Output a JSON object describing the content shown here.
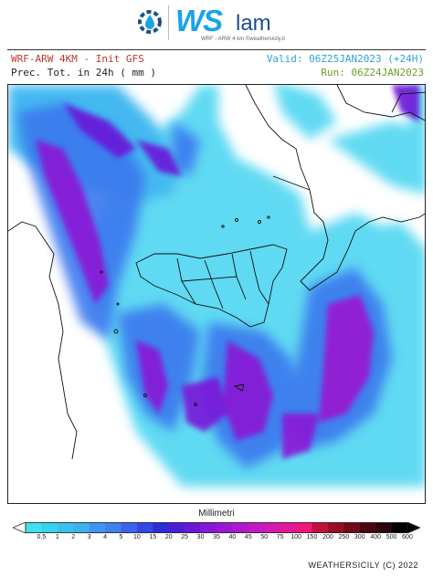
{
  "logo": {
    "brand": "WS",
    "brand_suffix": "lam",
    "tagline": "WRF - ARW 4 km ©weathersicily.it"
  },
  "header": {
    "model": "WRF-ARW 4KM - Init GFS",
    "valid": "Valid: 06Z25JAN2023 (+24H)",
    "field": "Prec. Tot. in 24h ( mm )",
    "run": "Run: 06Z24JAN2023"
  },
  "colorbar": {
    "title": "Millimetri",
    "ticks": [
      "0.5",
      "1",
      "2",
      "3",
      "4",
      "5",
      "10",
      "15",
      "20",
      "25",
      "30",
      "35",
      "40",
      "45",
      "50",
      "75",
      "100",
      "150",
      "200",
      "250",
      "300",
      "400",
      "500",
      "600"
    ],
    "colors": [
      "#40e0f0",
      "#3ad0f0",
      "#3cc0f0",
      "#3eb0f2",
      "#4095f2",
      "#4080f0",
      "#3a64ec",
      "#3348e4",
      "#2c2cd8",
      "#4c1ed8",
      "#6a18d8",
      "#8418d6",
      "#9a18d2",
      "#b018cc",
      "#c418c4",
      "#d418b0",
      "#e41898",
      "#f01878",
      "#c01040",
      "#9a0c24",
      "#700818",
      "#4a0610",
      "#2a0408",
      "#000000"
    ],
    "arrow_color": "#ffffff"
  },
  "credit": "WEATHERSICILY (C) 2022"
}
